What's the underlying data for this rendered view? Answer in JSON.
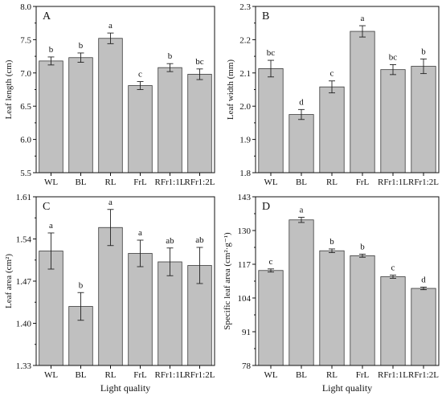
{
  "figure": {
    "xlabel": "Light quality"
  },
  "chart_data": [
    {
      "type": "bar",
      "panel": "A",
      "categories": [
        "WL",
        "BL",
        "RL",
        "FrL",
        "RFr1:1L",
        "RFr1:2L"
      ],
      "values": [
        7.18,
        7.23,
        7.52,
        6.81,
        7.08,
        6.98
      ],
      "errors": [
        0.06,
        0.07,
        0.08,
        0.06,
        0.06,
        0.08
      ],
      "letters": [
        "b",
        "b",
        "a",
        "c",
        "b",
        "bc"
      ],
      "ylabel": "Leaf length (cm)",
      "ylim": [
        5.5,
        8.0
      ],
      "yticks": [
        "5.5",
        "6.0",
        "6.5",
        "7.0",
        "7.5",
        "8.0"
      ],
      "show_xlabel": false
    },
    {
      "type": "bar",
      "panel": "B",
      "categories": [
        "WL",
        "BL",
        "RL",
        "FrL",
        "RFr1:1L",
        "RFr1:2L"
      ],
      "values": [
        2.113,
        1.975,
        2.058,
        2.225,
        2.11,
        2.12
      ],
      "errors": [
        0.025,
        0.015,
        0.018,
        0.017,
        0.015,
        0.022
      ],
      "letters": [
        "bc",
        "d",
        "c",
        "a",
        "bc",
        "b"
      ],
      "ylabel": "Leaf width (mm)",
      "ylim": [
        1.8,
        2.3
      ],
      "yticks": [
        "1.8",
        "1.9",
        "2.0",
        "2.1",
        "2.2",
        "2.3"
      ],
      "show_xlabel": false
    },
    {
      "type": "bar",
      "panel": "C",
      "categories": [
        "WL",
        "BL",
        "RL",
        "FrL",
        "RFr1:1L",
        "RFr1:2L"
      ],
      "values": [
        1.52,
        1.428,
        1.559,
        1.516,
        1.502,
        1.496
      ],
      "errors": [
        0.03,
        0.023,
        0.03,
        0.022,
        0.023,
        0.03
      ],
      "letters": [
        "a",
        "b",
        "a",
        "a",
        "ab",
        "ab"
      ],
      "ylabel": "Leaf area (cm²)",
      "ylim": [
        1.33,
        1.61
      ],
      "yticks": [
        "1.33",
        "1.40",
        "1.47",
        "1.54",
        "1.61"
      ],
      "show_xlabel": true
    },
    {
      "type": "bar",
      "panel": "D",
      "categories": [
        "WL",
        "BL",
        "RL",
        "FrL",
        "RFr1:1L",
        "RFr1:2L"
      ],
      "values": [
        114.6,
        134.1,
        122.2,
        120.3,
        112.2,
        107.7
      ],
      "errors": [
        0.6,
        1.0,
        0.7,
        0.6,
        0.6,
        0.5
      ],
      "letters": [
        "c",
        "a",
        "b",
        "b",
        "c",
        "d"
      ],
      "ylabel": "Specific leaf area (cm²·g⁻¹)",
      "ylim": [
        78,
        143
      ],
      "yticks": [
        "78",
        "91",
        "104",
        "117",
        "130",
        "143"
      ],
      "show_xlabel": true
    }
  ]
}
